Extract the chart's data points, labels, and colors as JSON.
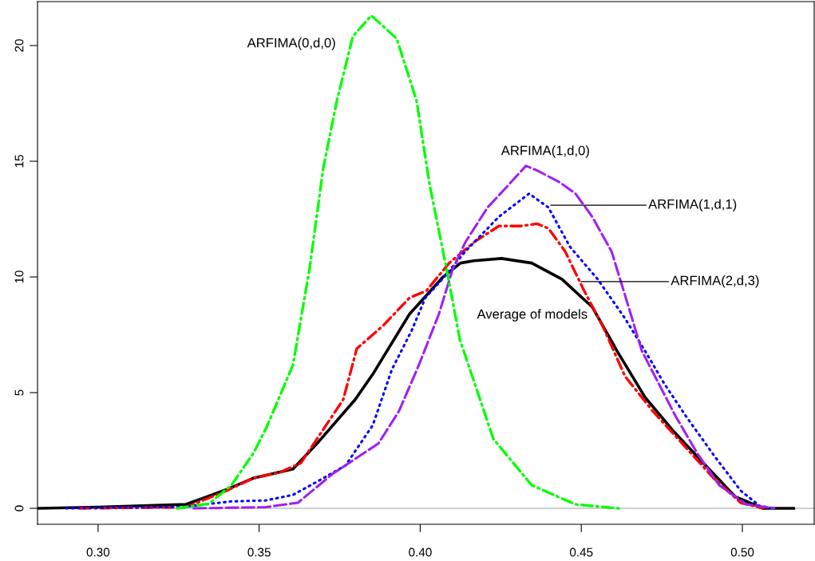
{
  "chart_data": {
    "type": "line",
    "xlim": [
      0.2812,
      0.5223
    ],
    "ylim": [
      -0.69,
      21.9
    ],
    "xticks": [
      {
        "value": 0.3,
        "label": "0.30"
      },
      {
        "value": 0.35,
        "label": "0.35"
      },
      {
        "value": 0.4,
        "label": "0.40"
      },
      {
        "value": 0.45,
        "label": "0.45"
      },
      {
        "value": 0.5,
        "label": "0.50"
      }
    ],
    "yticks": [
      0,
      5,
      10,
      15,
      20
    ],
    "grid": false,
    "legend": false,
    "ref_lines": [
      {
        "axis": "y",
        "value": 0,
        "color": "#bebebe"
      }
    ],
    "series": [
      {
        "color": "#00ff00",
        "line_style": "dashdot",
        "x": [
          0.3245,
          0.3344,
          0.3414,
          0.3483,
          0.3523,
          0.3605,
          0.3657,
          0.3699,
          0.3741,
          0.3791,
          0.3848,
          0.3927,
          0.3989,
          0.4029,
          0.4081,
          0.4123,
          0.414,
          0.4227,
          0.4346,
          0.4482,
          0.4616
        ],
        "values": [
          0,
          0.2,
          1.0,
          2.4,
          3.5,
          6.2,
          10.4,
          14.7,
          17.6,
          20.4,
          21.3,
          20.3,
          17.6,
          14.0,
          10.4,
          7.3,
          6.6,
          3.0,
          1.0,
          0.17,
          0
        ]
      },
      {
        "color": "#a020f0",
        "line_style": "dashed",
        "x": [
          0.3297,
          0.352,
          0.362,
          0.3729,
          0.387,
          0.3934,
          0.3996,
          0.4058,
          0.41,
          0.414,
          0.4209,
          0.4269,
          0.4328,
          0.4363,
          0.4432,
          0.4482,
          0.4534,
          0.4594,
          0.4636,
          0.4688,
          0.474,
          0.4792,
          0.4859,
          0.4928,
          0.5012,
          0.5099
        ],
        "values": [
          0,
          0.05,
          0.24,
          1.5,
          2.8,
          4.2,
          6.2,
          8.4,
          10.3,
          11.5,
          13.0,
          13.9,
          14.8,
          14.6,
          14.1,
          13.6,
          12.6,
          11.1,
          9.2,
          6.8,
          5.4,
          4.0,
          2.4,
          1.0,
          0.17,
          0
        ]
      },
      {
        "color": "#0000ff",
        "line_style": "dotted",
        "x": [
          0.2901,
          0.3273,
          0.3332,
          0.3414,
          0.352,
          0.3605,
          0.3686,
          0.3768,
          0.3853,
          0.3912,
          0.3974,
          0.4016,
          0.4068,
          0.414,
          0.4244,
          0.4338,
          0.4398,
          0.4465,
          0.4551,
          0.4636,
          0.4698,
          0.4757,
          0.4824,
          0.4911,
          0.4995,
          0.5054,
          0.5099
        ],
        "values": [
          0,
          0.07,
          0.17,
          0.3,
          0.34,
          0.58,
          1.2,
          1.85,
          3.6,
          6.0,
          7.7,
          9.1,
          9.9,
          11.1,
          12.6,
          13.6,
          13.0,
          11.3,
          9.9,
          8.2,
          6.8,
          5.4,
          4.0,
          2.3,
          0.76,
          0.1,
          0
        ]
      },
      {
        "color": "#ff0000",
        "line_style": "dashdot",
        "x": [
          0.2943,
          0.3273,
          0.3397,
          0.3481,
          0.3563,
          0.3629,
          0.3761,
          0.3803,
          0.3885,
          0.3967,
          0.4019,
          0.409,
          0.4167,
          0.4244,
          0.4311,
          0.4363,
          0.4398,
          0.445,
          0.4509,
          0.4569,
          0.4636,
          0.4722,
          0.4807,
          0.4911,
          0.4995,
          0.5064
        ],
        "values": [
          0,
          0.05,
          0.75,
          1.3,
          1.55,
          1.95,
          4.7,
          6.9,
          7.9,
          9.1,
          9.4,
          10.6,
          11.5,
          12.2,
          12.2,
          12.3,
          12.1,
          11.1,
          9.4,
          7.8,
          5.7,
          4.2,
          2.9,
          1.3,
          0.24,
          0
        ]
      },
      {
        "color": "#000000",
        "line_style": "solid",
        "x": [
          0.2815,
          0.3,
          0.3273,
          0.3397,
          0.3481,
          0.3605,
          0.3686,
          0.3798,
          0.3853,
          0.3967,
          0.4071,
          0.4125,
          0.4167,
          0.4252,
          0.4346,
          0.444,
          0.4534,
          0.4611,
          0.4698,
          0.4782,
          0.4869,
          0.4978,
          0.5064,
          0.5159
        ],
        "values": [
          0,
          0.05,
          0.17,
          0.8,
          1.3,
          1.7,
          2.9,
          4.7,
          5.8,
          8.4,
          10.0,
          10.6,
          10.7,
          10.8,
          10.6,
          9.9,
          8.7,
          6.8,
          4.8,
          3.4,
          2.1,
          0.5,
          0.0,
          0
        ]
      }
    ],
    "annotations": [
      "ARFIMA(0,d,0)",
      "ARFIMA(1,d,0)",
      {
        "text": "ARFIMA(1,d,1)",
        "x": 0.4405,
        "y": 13.1
      },
      {
        "text": "ARFIMA(2,d,3)",
        "x": 0.4499,
        "y": 9.8
      },
      "Average of models"
    ]
  }
}
